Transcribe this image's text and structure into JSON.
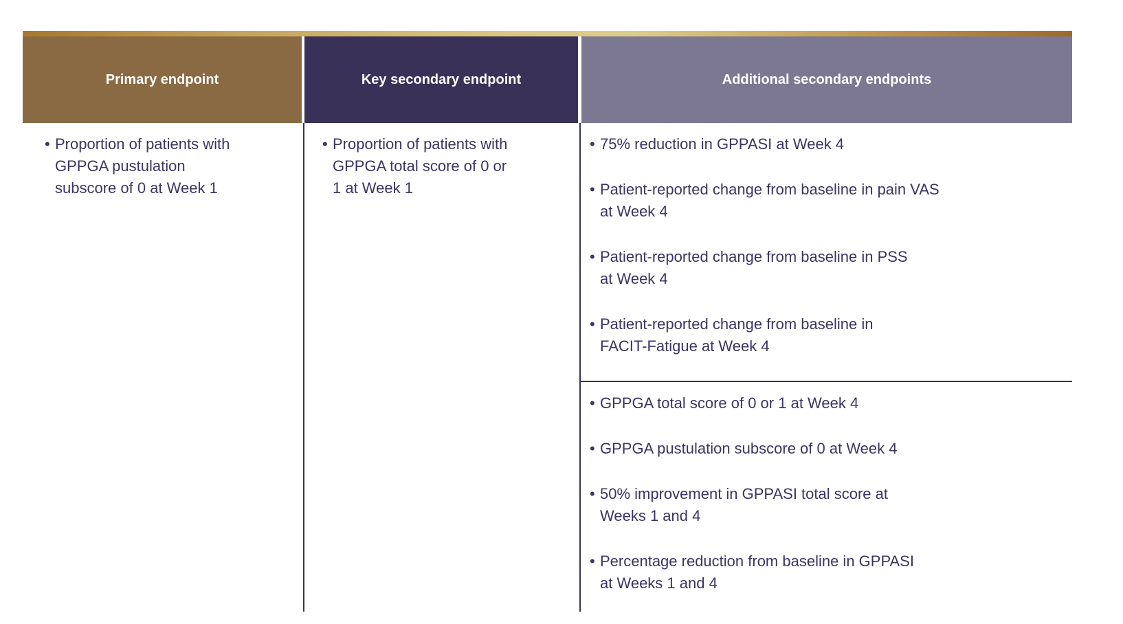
{
  "bullet": "•",
  "table": {
    "columns": [
      {
        "header": "Primary endpoint",
        "items": [
          "Proportion of patients with\nGPPGA pustulation\nsubscore of 0 at Week 1"
        ]
      },
      {
        "header": "Key secondary endpoint",
        "items": [
          "Proportion of patients with\nGPPGA total score of 0 or\n1 at Week 1"
        ]
      },
      {
        "header": "Additional secondary endpoints",
        "sections": [
          {
            "items": [
              "75% reduction in GPPASI at Week 4",
              "Patient-reported change from baseline in pain VAS\nat Week 4",
              "Patient-reported change from baseline in PSS\nat Week 4",
              "Patient-reported change from baseline in\nFACIT-Fatigue at Week 4"
            ]
          },
          {
            "items": [
              "GPPGA total score of 0 or 1 at Week 4",
              "GPPGA pustulation subscore of 0 at Week 4",
              "50% improvement in GPPASI total score at\nWeeks 1 and 4",
              "Percentage reduction from baseline in GPPASI\nat Weeks 1 and 4"
            ]
          }
        ]
      }
    ]
  },
  "colors": {
    "gold_bar_start": "#a8782f",
    "gold_bar_mid": "#ddcd8a",
    "gold_bar_end": "#9c6b29",
    "primary_header_bg": "#8a6a43",
    "key_secondary_header_bg": "#3a3158",
    "additional_header_bg": "#7d7892",
    "body_text": "#3b3462",
    "divider_line": "#3a3158",
    "header_text": "#ffffff"
  }
}
